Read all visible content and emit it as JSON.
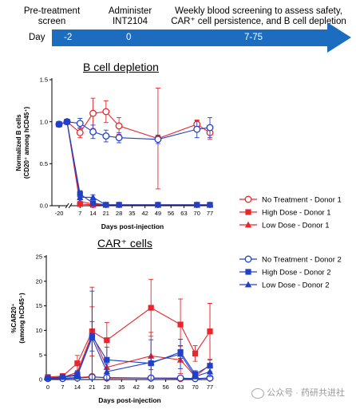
{
  "timeline": {
    "phases": [
      {
        "label_line1": "Pre-treatment",
        "label_line2": "screen"
      },
      {
        "label_line1": "Administer",
        "label_line2": "INT2104"
      },
      {
        "label_line1": "Weekly blood screening to assess safety,",
        "label_line2": "CAR⁺ cell persistence, and B cell depletion"
      }
    ],
    "day_label": "Day",
    "day_values": [
      "-2",
      "0",
      "7-75"
    ],
    "bar_color": "#1c6dbf"
  },
  "legend": {
    "entries": [
      {
        "label": "No Treatment - Donor 1",
        "color": "#e8262c",
        "marker": "circle-open"
      },
      {
        "label": "High Dose - Donor 1",
        "color": "#e8262c",
        "marker": "square"
      },
      {
        "label": "Low Dose - Donor 1",
        "color": "#e8262c",
        "marker": "triangle"
      },
      {
        "label": "No Treatment - Donor 2",
        "color": "#2140c8",
        "marker": "circle-open"
      },
      {
        "label": "High Dose - Donor 2",
        "color": "#2140c8",
        "marker": "square"
      },
      {
        "label": "Low Dose - Donor 2",
        "color": "#2140c8",
        "marker": "triangle"
      }
    ]
  },
  "chart_data": [
    {
      "type": "line",
      "title": "B cell depletion",
      "xlabel": "Days post-injection",
      "ylabel_line1": "Normalized B cells",
      "ylabel_line2": "(CD20⁺ among hCD45⁺)",
      "x_ticks": [
        -20,
        7,
        14,
        21,
        28,
        35,
        42,
        49,
        56,
        63,
        70,
        77
      ],
      "x_tick_labels": [
        "-20",
        "7",
        "14",
        "21",
        "28",
        "35",
        "42",
        "49",
        "56",
        "63",
        "70",
        "77"
      ],
      "y_ticks": [
        0.0,
        0.5,
        1.0,
        1.5
      ],
      "y_tick_labels": [
        "0.0",
        "0.5",
        "1.0",
        "1.5"
      ],
      "ylim": [
        0,
        1.5
      ],
      "x_break": [
        -20,
        0
      ],
      "series": [
        {
          "name": "No Treatment - Donor 1",
          "color": "#e8262c",
          "marker": "circle-open",
          "x": [
            -20,
            0,
            7,
            14,
            21,
            28,
            49,
            70,
            77
          ],
          "y": [
            0.97,
            1.0,
            0.87,
            1.1,
            1.12,
            0.95,
            0.8,
            0.97,
            0.87
          ],
          "err": [
            0.02,
            0.02,
            0.06,
            0.18,
            0.13,
            0.1,
            0.6,
            0.05,
            0.08
          ]
        },
        {
          "name": "High Dose - Donor 1",
          "color": "#e8262c",
          "marker": "square",
          "x": [
            -20,
            0,
            7,
            14,
            21,
            28,
            49,
            70,
            77
          ],
          "y": [
            0.97,
            1.0,
            0.02,
            0.01,
            0.01,
            0.01,
            0.01,
            0.01,
            0.01
          ],
          "err": []
        },
        {
          "name": "Low Dose - Donor 1",
          "color": "#e8262c",
          "marker": "triangle",
          "x": [
            -20,
            0,
            7,
            14,
            21,
            28,
            49,
            70,
            77
          ],
          "y": [
            0.97,
            1.0,
            0.05,
            0.02,
            0.01,
            0.01,
            0.01,
            0.01,
            0.01
          ],
          "err": []
        },
        {
          "name": "No Treatment - Donor 2",
          "color": "#2140c8",
          "marker": "circle-open",
          "x": [
            -20,
            0,
            7,
            14,
            21,
            28,
            49,
            70,
            77
          ],
          "y": [
            0.97,
            1.0,
            0.98,
            0.88,
            0.83,
            0.81,
            0.79,
            0.91,
            0.93
          ],
          "err": [
            0.02,
            0.02,
            0.06,
            0.08,
            0.07,
            0.06,
            0.05,
            0.1,
            0.12
          ]
        },
        {
          "name": "High Dose - Donor 2",
          "color": "#2140c8",
          "marker": "square",
          "x": [
            -20,
            0,
            7,
            14,
            21,
            28,
            49,
            70,
            77
          ],
          "y": [
            0.97,
            1.0,
            0.14,
            0.03,
            0.01,
            0.01,
            0.01,
            0.01,
            0.01
          ],
          "err": [
            0.02,
            0.02,
            0.04,
            0.02,
            0,
            0,
            0,
            0,
            0
          ]
        },
        {
          "name": "Low Dose - Donor 2",
          "color": "#2140c8",
          "marker": "triangle",
          "x": [
            -20,
            0,
            7,
            14,
            21,
            28,
            49,
            70,
            77
          ],
          "y": [
            0.97,
            1.0,
            0.1,
            0.1,
            0.01,
            0.01,
            0.01,
            0.01,
            0.01
          ],
          "err": [
            0.02,
            0.02,
            0.03,
            0.03,
            0,
            0,
            0,
            0,
            0
          ]
        }
      ]
    },
    {
      "type": "line",
      "title": "CAR⁺ cells",
      "xlabel": "Days post-injection",
      "ylabel_line1": "%CAR20⁺",
      "ylabel_line2": "(among hCD45⁺)",
      "x_ticks": [
        0,
        7,
        14,
        21,
        28,
        35,
        42,
        49,
        56,
        63,
        70,
        77
      ],
      "x_tick_labels": [
        "0",
        "7",
        "14",
        "21",
        "28",
        "35",
        "42",
        "49",
        "56",
        "63",
        "70",
        "77"
      ],
      "y_ticks": [
        0,
        5,
        10,
        15,
        20,
        25
      ],
      "y_tick_labels": [
        "0",
        "5",
        "10",
        "15",
        "20",
        "25"
      ],
      "ylim": [
        0,
        25
      ],
      "series": [
        {
          "name": "No Treatment - Donor 1",
          "color": "#e8262c",
          "marker": "circle-open",
          "x": [
            0,
            7,
            14,
            21,
            28,
            49,
            63,
            70,
            77
          ],
          "y": [
            0.3,
            0.3,
            0.4,
            0.6,
            0.3,
            0.3,
            0.2,
            0.2,
            0.3
          ],
          "err": []
        },
        {
          "name": "High Dose - Donor 1",
          "color": "#e8262c",
          "marker": "square",
          "x": [
            0,
            7,
            14,
            21,
            28,
            49,
            63,
            70,
            77
          ],
          "y": [
            0.5,
            0.7,
            3.3,
            9.8,
            8.0,
            14.6,
            11.2,
            5.3,
            9.8
          ],
          "err": [
            0.2,
            0.3,
            1.6,
            5.0,
            3.6,
            5.8,
            5.2,
            1.6,
            5.7
          ]
        },
        {
          "name": "Low Dose - Donor 1",
          "color": "#e8262c",
          "marker": "triangle",
          "x": [
            0,
            7,
            14,
            21,
            28,
            49,
            63,
            70,
            77
          ],
          "y": [
            0.3,
            0.4,
            1.5,
            9.3,
            2.5,
            4.8,
            4.0,
            0.6,
            3.0
          ],
          "err": [
            0.1,
            0.2,
            1.6,
            9.5,
            1.6,
            4.8,
            2.8,
            0.5,
            12.5
          ]
        },
        {
          "name": "No Treatment - Donor 2",
          "color": "#2140c8",
          "marker": "circle-open",
          "x": [
            0,
            7,
            14,
            21,
            28,
            49,
            63,
            70,
            77
          ],
          "y": [
            0.2,
            0.2,
            0.3,
            0.5,
            0.4,
            0.3,
            0.3,
            0.2,
            0.3
          ],
          "err": []
        },
        {
          "name": "High Dose - Donor 2",
          "color": "#2140c8",
          "marker": "square",
          "x": [
            0,
            7,
            14,
            21,
            28,
            49,
            63,
            70,
            77
          ],
          "y": [
            0.3,
            0.5,
            1.0,
            8.8,
            4.0,
            3.3,
            5.6,
            1.1,
            2.8
          ],
          "err": [
            0.1,
            0.3,
            0.8,
            3.0,
            2.6,
            1.3,
            1.3,
            0.7,
            1.2
          ]
        },
        {
          "name": "Low Dose - Donor 2",
          "color": "#2140c8",
          "marker": "triangle",
          "x": [
            0,
            7,
            14,
            21,
            28,
            49,
            63,
            70,
            77
          ],
          "y": [
            0.3,
            0.5,
            0.8,
            8.5,
            1.6,
            3.5,
            5.2,
            0.6,
            1.6
          ],
          "err": [
            0.1,
            0.2,
            0.7,
            9.5,
            1.6,
            4.6,
            3.0,
            0.4,
            1.0
          ]
        }
      ]
    }
  ],
  "watermark": {
    "text": "公众号 · 药研共进社"
  }
}
